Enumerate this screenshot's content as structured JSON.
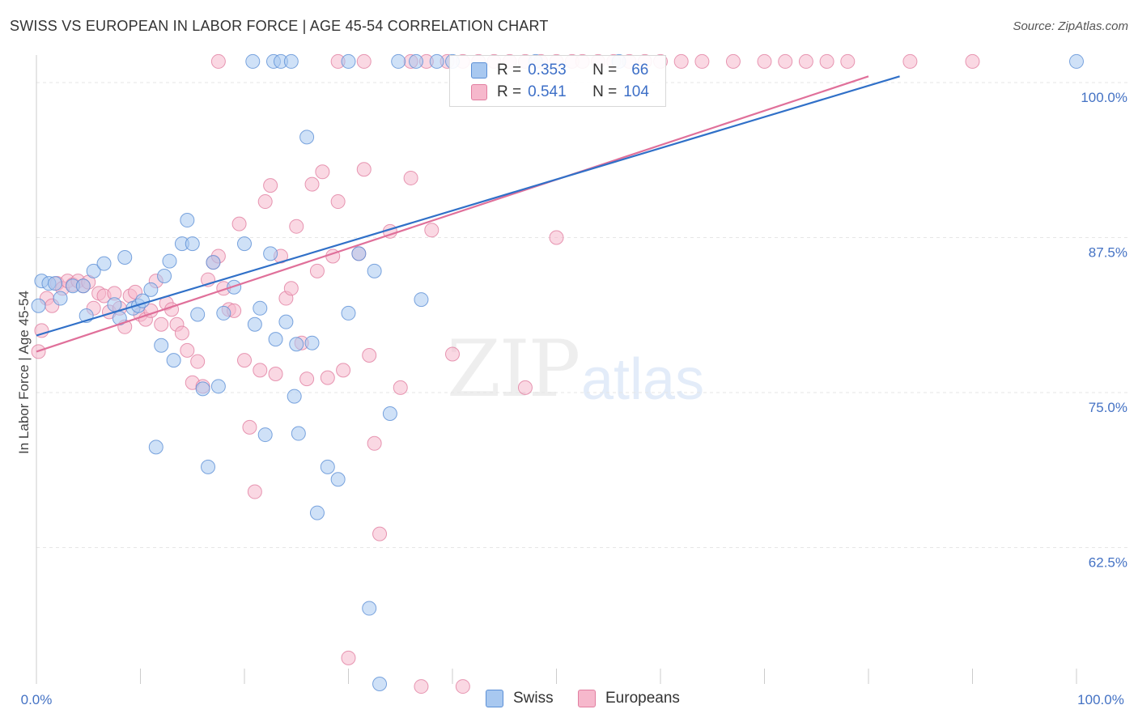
{
  "title": "SWISS VS EUROPEAN IN LABOR FORCE | AGE 45-54 CORRELATION CHART",
  "source": "Source: ZipAtlas.com",
  "watermark": {
    "zip": "ZIP",
    "atlas": "atlas"
  },
  "legend": {
    "rows": [
      {
        "r_label": "R =",
        "r_value": "0.353",
        "n_label": "N =",
        "n_value": "66"
      },
      {
        "r_label": "R =",
        "r_value": "0.541",
        "n_label": "N =",
        "n_value": "104"
      }
    ]
  },
  "bottom_legend": {
    "swiss": "Swiss",
    "europeans": "Europeans"
  },
  "colors": {
    "swiss_fill": "#a8c8f0",
    "swiss_stroke": "#5b8fd6",
    "swiss_line": "#3070c8",
    "euro_fill": "#f6b8cc",
    "euro_stroke": "#e17ea0",
    "euro_line": "#e0709a",
    "grid": "#e6e6e6",
    "tick_text": "#4472c4"
  },
  "chart_data": {
    "type": "scatter",
    "title": "SWISS VS EUROPEAN IN LABOR FORCE | AGE 45-54 CORRELATION CHART",
    "xlabel": "",
    "ylabel": "In Labor Force | Age 45-54",
    "xlim": [
      0,
      100
    ],
    "ylim": [
      51.5,
      101.5
    ],
    "x_tick_labels": [
      "0.0%",
      "100.0%"
    ],
    "y_ticks": [
      100.0,
      87.5,
      75.0,
      62.5
    ],
    "y_tick_labels": [
      "100.0%",
      "87.5%",
      "75.0%",
      "62.5%"
    ],
    "grid": true,
    "series": [
      {
        "name": "Swiss",
        "r": 0.353,
        "n": 66,
        "trend": {
          "x": [
            0,
            83
          ],
          "y": [
            79.6,
            100.5
          ]
        },
        "points": [
          [
            0.2,
            82.0
          ],
          [
            0.5,
            84.0
          ],
          [
            1.2,
            83.8
          ],
          [
            1.8,
            83.8
          ],
          [
            2.3,
            82.6
          ],
          [
            3.5,
            83.6
          ],
          [
            4.5,
            83.6
          ],
          [
            4.8,
            81.2
          ],
          [
            5.5,
            84.8
          ],
          [
            6.5,
            85.4
          ],
          [
            7.5,
            82.1
          ],
          [
            8.0,
            81.0
          ],
          [
            8.5,
            85.9
          ],
          [
            9.3,
            81.8
          ],
          [
            9.8,
            82.0
          ],
          [
            10.2,
            82.4
          ],
          [
            11.0,
            83.3
          ],
          [
            11.5,
            70.6
          ],
          [
            12.0,
            78.8
          ],
          [
            12.3,
            84.4
          ],
          [
            12.8,
            85.6
          ],
          [
            13.2,
            77.6
          ],
          [
            14.0,
            87.0
          ],
          [
            14.5,
            88.9
          ],
          [
            15.0,
            87.0
          ],
          [
            15.5,
            81.3
          ],
          [
            16.0,
            75.3
          ],
          [
            16.5,
            69.0
          ],
          [
            17.0,
            85.5
          ],
          [
            17.5,
            75.5
          ],
          [
            18.0,
            81.4
          ],
          [
            19.0,
            83.5
          ],
          [
            20.0,
            87.0
          ],
          [
            21.0,
            80.5
          ],
          [
            21.5,
            81.8
          ],
          [
            22.0,
            71.6
          ],
          [
            22.5,
            86.2
          ],
          [
            23.0,
            79.3
          ],
          [
            24.0,
            80.7
          ],
          [
            25.0,
            78.9
          ],
          [
            24.8,
            74.7
          ],
          [
            25.2,
            71.7
          ],
          [
            26.0,
            95.6
          ],
          [
            26.5,
            79.0
          ],
          [
            27.0,
            65.3
          ],
          [
            28.0,
            69.0
          ],
          [
            29.0,
            68.0
          ],
          [
            30.0,
            81.4
          ],
          [
            31.0,
            86.2
          ],
          [
            32.5,
            84.8
          ],
          [
            32.0,
            57.6
          ],
          [
            33.0,
            51.5
          ],
          [
            34.0,
            73.3
          ],
          [
            37.0,
            82.5
          ],
          [
            20.8,
            101.7
          ],
          [
            22.8,
            101.7
          ],
          [
            23.5,
            101.7
          ],
          [
            24.5,
            101.7
          ],
          [
            30.0,
            101.7
          ],
          [
            34.8,
            101.7
          ],
          [
            36.5,
            101.7
          ],
          [
            38.5,
            101.7
          ],
          [
            40.0,
            101.7
          ],
          [
            48.0,
            101.7
          ],
          [
            56.0,
            101.7
          ],
          [
            100.0,
            101.7
          ]
        ]
      },
      {
        "name": "Europeans",
        "r": 0.541,
        "n": 104,
        "trend": {
          "x": [
            0,
            80
          ],
          "y": [
            78.3,
            100.5
          ]
        },
        "points": [
          [
            0.2,
            78.3
          ],
          [
            0.5,
            80.0
          ],
          [
            1.0,
            82.6
          ],
          [
            1.5,
            82.0
          ],
          [
            2.0,
            83.8
          ],
          [
            2.5,
            83.4
          ],
          [
            3.0,
            84.0
          ],
          [
            3.5,
            83.7
          ],
          [
            4.0,
            84.0
          ],
          [
            4.5,
            83.6
          ],
          [
            5.0,
            83.9
          ],
          [
            5.5,
            81.8
          ],
          [
            6.0,
            83.0
          ],
          [
            6.5,
            82.8
          ],
          [
            7.0,
            81.5
          ],
          [
            7.5,
            83.0
          ],
          [
            8.0,
            81.8
          ],
          [
            8.5,
            80.3
          ],
          [
            9.0,
            82.8
          ],
          [
            9.5,
            83.1
          ],
          [
            10.0,
            81.3
          ],
          [
            10.5,
            80.9
          ],
          [
            11.0,
            81.6
          ],
          [
            11.5,
            84.0
          ],
          [
            12.0,
            80.5
          ],
          [
            12.5,
            82.2
          ],
          [
            13.0,
            81.7
          ],
          [
            13.5,
            80.5
          ],
          [
            14.0,
            79.8
          ],
          [
            14.5,
            78.4
          ],
          [
            15.0,
            75.8
          ],
          [
            15.5,
            77.5
          ],
          [
            16.0,
            75.5
          ],
          [
            16.5,
            84.1
          ],
          [
            17.0,
            85.5
          ],
          [
            17.5,
            86.0
          ],
          [
            18.0,
            83.4
          ],
          [
            18.5,
            81.7
          ],
          [
            19.0,
            81.6
          ],
          [
            19.5,
            88.6
          ],
          [
            20.0,
            77.6
          ],
          [
            20.5,
            72.2
          ],
          [
            21.0,
            67.0
          ],
          [
            21.5,
            76.8
          ],
          [
            22.0,
            90.4
          ],
          [
            22.5,
            91.7
          ],
          [
            23.0,
            76.5
          ],
          [
            23.5,
            86.0
          ],
          [
            24.0,
            82.6
          ],
          [
            24.5,
            83.4
          ],
          [
            25.0,
            88.4
          ],
          [
            25.5,
            79.0
          ],
          [
            26.0,
            76.1
          ],
          [
            26.5,
            91.8
          ],
          [
            27.0,
            84.8
          ],
          [
            27.5,
            92.8
          ],
          [
            28.0,
            76.2
          ],
          [
            28.5,
            86.0
          ],
          [
            29.0,
            90.4
          ],
          [
            29.5,
            76.8
          ],
          [
            30.0,
            53.6
          ],
          [
            31.0,
            86.2
          ],
          [
            31.5,
            93.0
          ],
          [
            32.0,
            78.0
          ],
          [
            32.5,
            70.9
          ],
          [
            33.0,
            63.6
          ],
          [
            34.0,
            88.0
          ],
          [
            35.0,
            75.4
          ],
          [
            36.0,
            92.3
          ],
          [
            37.0,
            51.3
          ],
          [
            38.0,
            88.1
          ],
          [
            40.0,
            78.1
          ],
          [
            41.0,
            51.3
          ],
          [
            47.0,
            75.4
          ],
          [
            50.0,
            87.5
          ],
          [
            17.5,
            101.7
          ],
          [
            29.0,
            101.7
          ],
          [
            31.5,
            101.7
          ],
          [
            36.0,
            101.7
          ],
          [
            37.5,
            101.7
          ],
          [
            39.5,
            101.7
          ],
          [
            41.0,
            101.7
          ],
          [
            42.5,
            101.7
          ],
          [
            44.0,
            101.7
          ],
          [
            45.5,
            101.7
          ],
          [
            47.0,
            101.7
          ],
          [
            48.5,
            101.7
          ],
          [
            50.0,
            101.7
          ],
          [
            51.5,
            101.7
          ],
          [
            52.5,
            101.7
          ],
          [
            54.0,
            101.7
          ],
          [
            55.5,
            101.7
          ],
          [
            57.0,
            101.7
          ],
          [
            58.5,
            101.7
          ],
          [
            60.0,
            101.7
          ],
          [
            62.0,
            101.7
          ],
          [
            64.0,
            101.7
          ],
          [
            67.0,
            101.7
          ],
          [
            70.0,
            101.7
          ],
          [
            72.0,
            101.7
          ],
          [
            74.0,
            101.7
          ],
          [
            76.0,
            101.7
          ],
          [
            78.0,
            101.7
          ],
          [
            84.0,
            101.7
          ],
          [
            90.0,
            101.7
          ]
        ]
      }
    ]
  }
}
